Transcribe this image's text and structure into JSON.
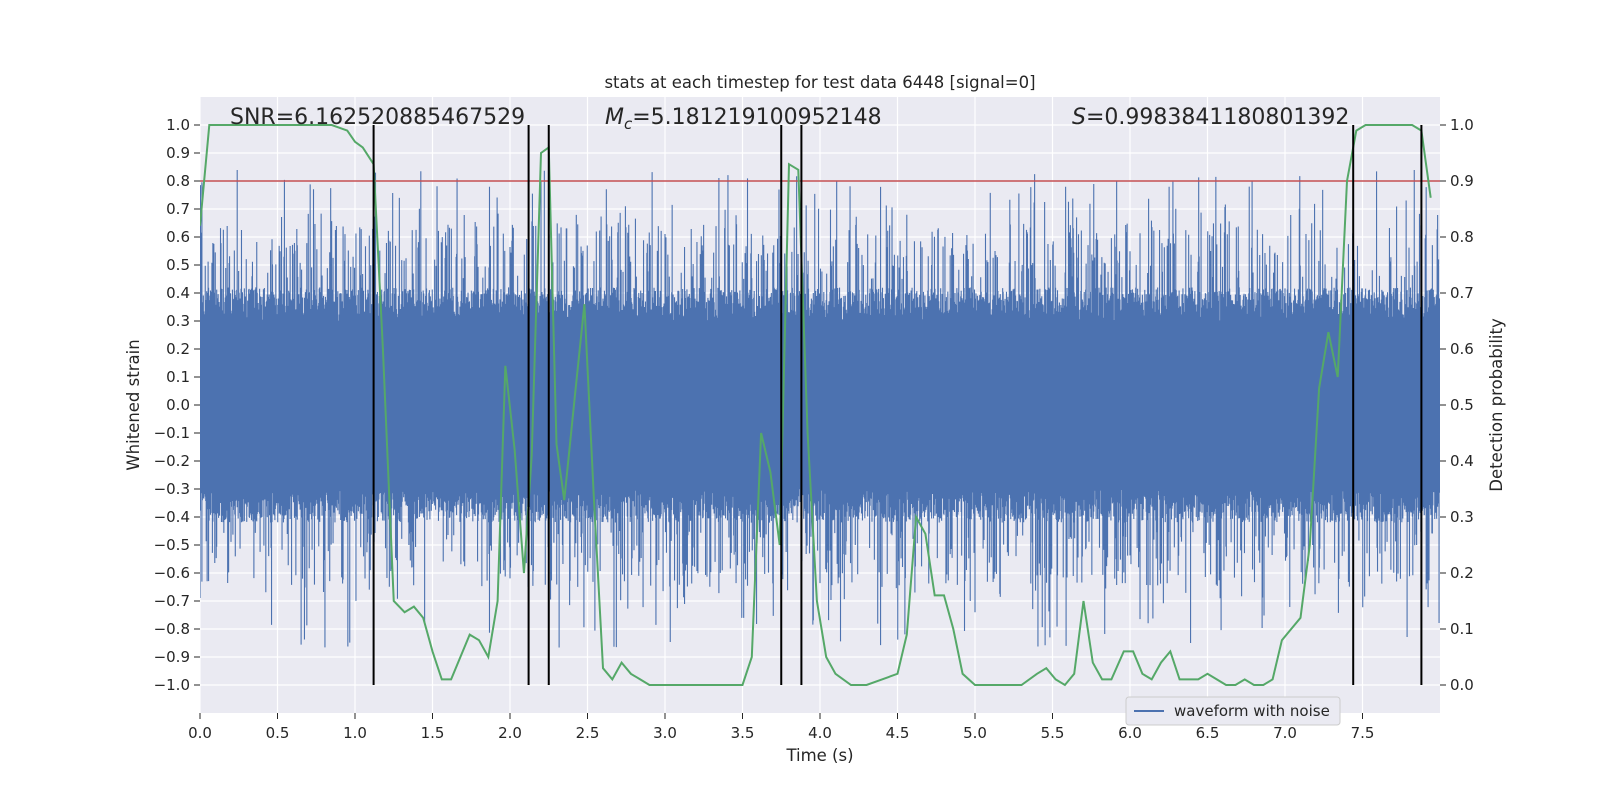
{
  "chart_data": {
    "type": "line",
    "title": "stats at each timestep for test data 6448 [signal=0]",
    "xlabel": "Time (s)",
    "ylabel_left": "Whitened strain",
    "ylabel_right": "Detection probability",
    "xlim": [
      0.0,
      8.0
    ],
    "ylim_left": [
      -1.1,
      1.1
    ],
    "ylim_right": [
      -0.05,
      1.05
    ],
    "x_ticks": [
      "0.0",
      "0.5",
      "1.0",
      "1.5",
      "2.0",
      "2.5",
      "3.0",
      "3.5",
      "4.0",
      "4.5",
      "5.0",
      "5.5",
      "6.0",
      "6.5",
      "7.0",
      "7.5"
    ],
    "y_left_ticks": [
      "1.0",
      "0.9",
      "0.8",
      "0.7",
      "0.6",
      "0.5",
      "0.4",
      "0.3",
      "0.2",
      "0.1",
      "0.0",
      "−0.1",
      "−0.2",
      "−0.3",
      "−0.4",
      "−0.5",
      "−0.6",
      "−0.7",
      "−0.8",
      "−0.9",
      "−1.0"
    ],
    "y_right_ticks": [
      "1.0",
      "0.9",
      "0.8",
      "0.7",
      "0.6",
      "0.5",
      "0.4",
      "0.3",
      "0.2",
      "0.1",
      "0.0"
    ],
    "annotations": {
      "snr": "SNR=6.162520885467529",
      "mc_symbol": "M",
      "mc_subscript": "c",
      "mc_value": "=5.181219100952148",
      "s_symbol": "S",
      "s_value": "=0.9983841180801392"
    },
    "threshold": {
      "value": 0.9,
      "color": "#c44e52"
    },
    "vlines": [
      1.12,
      2.12,
      2.25,
      3.75,
      3.88,
      7.44,
      7.88
    ],
    "legend": {
      "label": "waveform with noise",
      "location": "lower-right"
    },
    "series": [
      {
        "name": "waveform with noise",
        "axis": "left",
        "color": "#4c72b0",
        "envelope": "dense noise ≈ ±0.4, spikes to ±0.9"
      },
      {
        "name": "Detection probability",
        "axis": "right",
        "color": "#55a868",
        "x": [
          0.0,
          0.06,
          0.12,
          0.25,
          0.4,
          0.55,
          0.7,
          0.85,
          0.95,
          1.0,
          1.05,
          1.12,
          1.18,
          1.25,
          1.32,
          1.38,
          1.44,
          1.5,
          1.56,
          1.62,
          1.68,
          1.74,
          1.8,
          1.86,
          1.92,
          1.97,
          2.03,
          2.09,
          2.14,
          2.2,
          2.25,
          2.3,
          2.35,
          2.42,
          2.48,
          2.54,
          2.6,
          2.66,
          2.72,
          2.78,
          2.84,
          2.9,
          3.0,
          3.1,
          3.2,
          3.3,
          3.4,
          3.5,
          3.56,
          3.62,
          3.68,
          3.74,
          3.8,
          3.86,
          3.92,
          3.98,
          4.04,
          4.1,
          4.2,
          4.3,
          4.4,
          4.5,
          4.56,
          4.62,
          4.68,
          4.74,
          4.8,
          4.86,
          4.92,
          5.0,
          5.1,
          5.2,
          5.3,
          5.4,
          5.46,
          5.52,
          5.58,
          5.64,
          5.7,
          5.76,
          5.82,
          5.88,
          5.96,
          6.02,
          6.08,
          6.14,
          6.2,
          6.26,
          6.32,
          6.38,
          6.44,
          6.5,
          6.56,
          6.62,
          6.68,
          6.74,
          6.8,
          6.86,
          6.92,
          6.98,
          7.04,
          7.1,
          7.16,
          7.22,
          7.28,
          7.34,
          7.4,
          7.46,
          7.52,
          7.58,
          7.66,
          7.74,
          7.82,
          7.88,
          7.94
        ],
        "y": [
          0.82,
          1.0,
          1.0,
          1.0,
          1.0,
          1.0,
          1.0,
          1.0,
          0.99,
          0.97,
          0.96,
          0.93,
          0.6,
          0.15,
          0.13,
          0.14,
          0.12,
          0.06,
          0.01,
          0.01,
          0.05,
          0.09,
          0.08,
          0.05,
          0.15,
          0.57,
          0.42,
          0.2,
          0.41,
          0.95,
          0.96,
          0.43,
          0.33,
          0.52,
          0.68,
          0.34,
          0.03,
          0.01,
          0.04,
          0.02,
          0.01,
          0.0,
          0.0,
          0.0,
          0.0,
          0.0,
          0.0,
          0.0,
          0.05,
          0.45,
          0.38,
          0.25,
          0.93,
          0.92,
          0.45,
          0.15,
          0.05,
          0.02,
          0.0,
          0.0,
          0.01,
          0.02,
          0.09,
          0.3,
          0.27,
          0.16,
          0.16,
          0.1,
          0.02,
          0.0,
          0.0,
          0.0,
          0.0,
          0.02,
          0.03,
          0.01,
          0.0,
          0.02,
          0.15,
          0.04,
          0.01,
          0.01,
          0.06,
          0.06,
          0.02,
          0.01,
          0.04,
          0.06,
          0.01,
          0.01,
          0.01,
          0.02,
          0.01,
          0.0,
          0.0,
          0.01,
          0.0,
          0.0,
          0.01,
          0.08,
          0.1,
          0.12,
          0.25,
          0.53,
          0.63,
          0.55,
          0.9,
          0.99,
          1.0,
          1.0,
          1.0,
          1.0,
          1.0,
          0.99,
          0.87
        ]
      }
    ]
  }
}
